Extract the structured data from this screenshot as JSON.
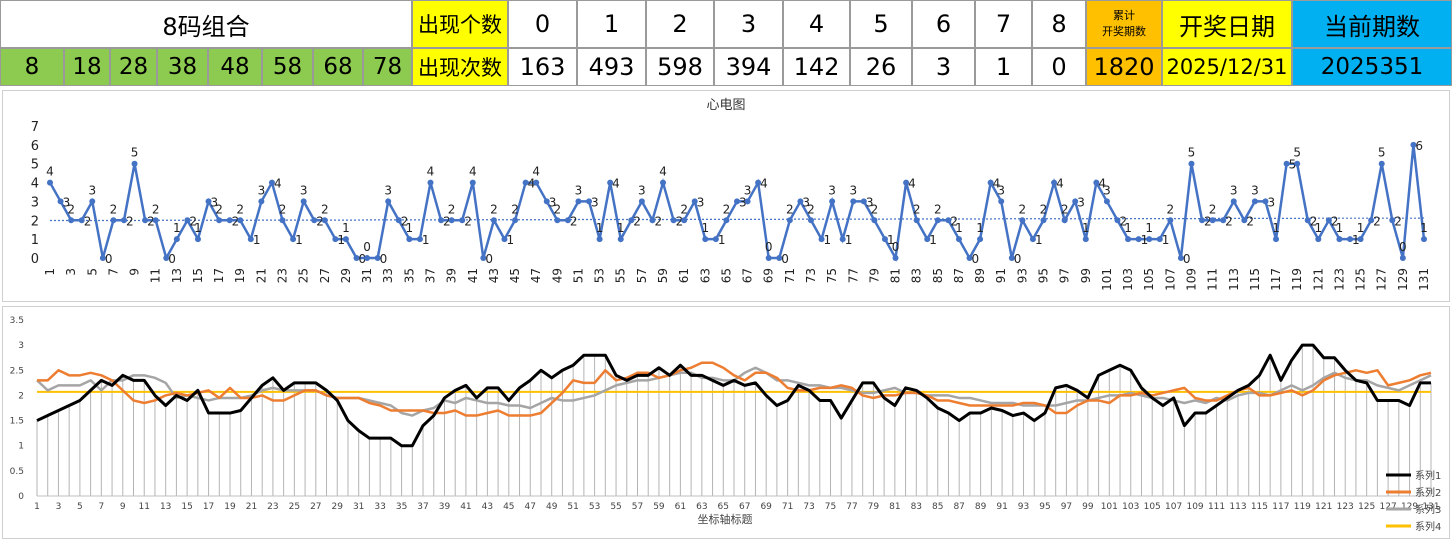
{
  "header": {
    "combo_title": "8码组合",
    "combo_numbers": [
      "8",
      "18",
      "28",
      "38",
      "48",
      "58",
      "68",
      "78"
    ],
    "count_label": "出现个数",
    "times_label": "出现次数",
    "count_values": [
      "0",
      "1",
      "2",
      "3",
      "4",
      "5",
      "6",
      "7",
      "8"
    ],
    "times_values": [
      "163",
      "493",
      "598",
      "394",
      "142",
      "26",
      "3",
      "1",
      "0"
    ],
    "cumulative_label_1": "累计",
    "cumulative_label_2": "开奖期数",
    "cumulative_value": "1820",
    "date_label": "开奖日期",
    "date_value": "2025/12/31",
    "period_label": "当前期数",
    "period_value": "2025351",
    "colors": {
      "green": "#8ccb4f",
      "yellow": "#ffff00",
      "orange": "#ffc000",
      "blue": "#00b0f0"
    }
  },
  "chart_data": [
    {
      "type": "line",
      "title": "心电图",
      "x": [
        1,
        2,
        3,
        4,
        5,
        6,
        7,
        8,
        9,
        10,
        11,
        12,
        13,
        14,
        15,
        16,
        17,
        18,
        19,
        20,
        21,
        22,
        23,
        24,
        25,
        26,
        27,
        28,
        29,
        30,
        31,
        32,
        33,
        34,
        35,
        36,
        37,
        38,
        39,
        40,
        41,
        42,
        43,
        44,
        45,
        46,
        47,
        48,
        49,
        50,
        51,
        52,
        53,
        54,
        55,
        56,
        57,
        58,
        59,
        60,
        61,
        62,
        63,
        64,
        65,
        66,
        67,
        68,
        69,
        70,
        71,
        72,
        73,
        74,
        75,
        76,
        77,
        78,
        79,
        80,
        81,
        82,
        83,
        84,
        85,
        86,
        87,
        88,
        89,
        90,
        91,
        92,
        93,
        94,
        95,
        96,
        97,
        98,
        99,
        100,
        101,
        102,
        103,
        104,
        105,
        106,
        107,
        108,
        109,
        110,
        111,
        112,
        113,
        114,
        115,
        116,
        117,
        118,
        119,
        120,
        121,
        122,
        123,
        124,
        125,
        126,
        127,
        128,
        129,
        130,
        131
      ],
      "series": [
        {
          "values": [
            4,
            3,
            2,
            2,
            3,
            0,
            2,
            2,
            5,
            2,
            2,
            0,
            1,
            2,
            1,
            3,
            2,
            2,
            2,
            1,
            3,
            4,
            2,
            1,
            3,
            2,
            2,
            1,
            1,
            0,
            0,
            0,
            3,
            2,
            1,
            1,
            4,
            2,
            2,
            2,
            4,
            0,
            2,
            1,
            2,
            4,
            4,
            3,
            2,
            2,
            3,
            3,
            1,
            4,
            1,
            2,
            3,
            2,
            4,
            2,
            2,
            3,
            1,
            1,
            2,
            3,
            3,
            4,
            0,
            0,
            2,
            3,
            2,
            1,
            3,
            1,
            3,
            3,
            2,
            1,
            0,
            4,
            2,
            1,
            2,
            2,
            1,
            0,
            1,
            4,
            3,
            0,
            2,
            1,
            2,
            4,
            2,
            3,
            1,
            4,
            3,
            2,
            1,
            1,
            1,
            1,
            2,
            0,
            5,
            2,
            2,
            2,
            3,
            2,
            3,
            3,
            1,
            5,
            5,
            2,
            1,
            2,
            1,
            1,
            1,
            2,
            5,
            2,
            0,
            6,
            1
          ],
          "color": "#4472c4"
        },
        {
          "values": [
            1.99,
            1.99,
            1.99,
            1.99,
            1.99,
            1.99,
            1.99,
            1.99,
            1.99,
            1.99,
            2.0,
            2.0,
            2.0,
            2.0,
            2.0,
            2.0,
            2.0,
            2.0,
            2.0,
            2.0,
            2.01,
            2.01,
            2.01,
            2.01,
            2.01,
            2.01,
            2.01,
            2.01,
            2.01,
            2.01,
            2.02,
            2.02,
            2.02,
            2.02,
            2.02,
            2.02,
            2.02,
            2.02,
            2.02,
            2.02,
            2.03,
            2.03,
            2.03,
            2.03,
            2.03,
            2.03,
            2.03,
            2.03,
            2.03,
            2.03,
            2.04,
            2.04,
            2.04,
            2.04,
            2.04,
            2.04,
            2.04,
            2.04,
            2.04,
            2.04,
            2.05,
            2.05,
            2.05,
            2.05,
            2.05,
            2.05,
            2.05,
            2.05,
            2.05,
            2.05,
            2.06,
            2.06,
            2.06,
            2.06,
            2.06,
            2.06,
            2.06,
            2.06,
            2.06,
            2.06,
            2.07,
            2.07,
            2.07,
            2.07,
            2.07,
            2.07,
            2.07,
            2.07,
            2.07,
            2.07,
            2.08,
            2.08,
            2.08,
            2.08,
            2.08,
            2.08,
            2.08,
            2.08,
            2.08,
            2.08,
            2.09,
            2.09,
            2.09,
            2.09,
            2.09,
            2.09,
            2.09,
            2.09,
            2.09,
            2.09,
            2.1,
            2.1,
            2.1,
            2.1,
            2.1,
            2.1,
            2.1,
            2.1,
            2.1,
            2.1,
            2.11,
            2.11,
            2.11,
            2.11,
            2.11,
            2.11,
            2.11,
            2.11,
            2.11,
            2.11,
            2.12
          ],
          "color": "#4472c4",
          "dotted": true
        }
      ],
      "y_ticks": [
        0,
        1,
        2,
        3,
        4,
        5,
        6,
        7
      ],
      "ylim": [
        0,
        7
      ]
    },
    {
      "type": "line",
      "xlabel": "坐标轴标题",
      "ylim": [
        0,
        3.5
      ],
      "y_ticks": [
        "0",
        "0.5",
        "1",
        "1.5",
        "2",
        "2.5",
        "3",
        "3.5"
      ],
      "x": [
        1,
        2,
        3,
        4,
        5,
        6,
        7,
        8,
        9,
        10,
        11,
        12,
        13,
        14,
        15,
        16,
        17,
        18,
        19,
        20,
        21,
        22,
        23,
        24,
        25,
        26,
        27,
        28,
        29,
        30,
        31,
        32,
        33,
        34,
        35,
        36,
        37,
        38,
        39,
        40,
        41,
        42,
        43,
        44,
        45,
        46,
        47,
        48,
        49,
        50,
        51,
        52,
        53,
        54,
        55,
        56,
        57,
        58,
        59,
        60,
        61,
        62,
        63,
        64,
        65,
        66,
        67,
        68,
        69,
        70,
        71,
        72,
        73,
        74,
        75,
        76,
        77,
        78,
        79,
        80,
        81,
        82,
        83,
        84,
        85,
        86,
        87,
        88,
        89,
        90,
        91,
        92,
        93,
        94,
        95,
        96,
        97,
        98,
        99,
        100,
        101,
        102,
        103,
        104,
        105,
        106,
        107,
        108,
        109,
        110,
        111,
        112,
        113,
        114,
        115,
        116,
        117,
        118,
        119,
        120,
        121,
        122,
        123,
        124,
        125,
        126,
        127,
        128,
        129,
        130,
        131
      ],
      "legend_position": "bottom-right",
      "series": [
        {
          "name": "系列1",
          "color": "#000000",
          "values": [
            1.5,
            1.6,
            1.7,
            1.8,
            1.9,
            2.1,
            2.3,
            2.2,
            2.4,
            2.3,
            2.3,
            2.0,
            1.8,
            2.0,
            1.9,
            2.1,
            1.65,
            1.65,
            1.65,
            1.7,
            1.95,
            2.2,
            2.35,
            2.1,
            2.25,
            2.25,
            2.25,
            2.1,
            1.9,
            1.5,
            1.3,
            1.15,
            1.15,
            1.15,
            1.0,
            1.0,
            1.4,
            1.6,
            1.95,
            2.1,
            2.2,
            1.95,
            2.15,
            2.15,
            1.9,
            2.15,
            2.3,
            2.5,
            2.35,
            2.5,
            2.6,
            2.8,
            2.8,
            2.8,
            2.4,
            2.3,
            2.4,
            2.4,
            2.55,
            2.4,
            2.6,
            2.4,
            2.4,
            2.3,
            2.2,
            2.3,
            2.2,
            2.25,
            2.0,
            1.8,
            1.9,
            2.2,
            2.1,
            1.9,
            1.9,
            1.55,
            1.9,
            2.25,
            2.25,
            1.95,
            1.8,
            2.15,
            2.1,
            1.95,
            1.75,
            1.65,
            1.5,
            1.65,
            1.65,
            1.75,
            1.7,
            1.6,
            1.65,
            1.5,
            1.65,
            2.15,
            2.2,
            2.1,
            1.95,
            2.4,
            2.5,
            2.6,
            2.5,
            2.15,
            1.95,
            1.8,
            1.95,
            1.4,
            1.65,
            1.65,
            1.8,
            1.95,
            2.1,
            2.2,
            2.4,
            2.8,
            2.3,
            2.7,
            3.0,
            3.0,
            2.75,
            2.75,
            2.5,
            2.3,
            2.25,
            1.9,
            1.9,
            1.9,
            1.8,
            2.25,
            2.25
          ]
        },
        {
          "name": "系列2",
          "color": "#ed7d31",
          "values": [
            2.3,
            2.3,
            2.5,
            2.4,
            2.4,
            2.45,
            2.4,
            2.3,
            2.1,
            1.9,
            1.85,
            1.9,
            2.0,
            2.05,
            2.0,
            2.05,
            2.1,
            1.95,
            2.15,
            1.95,
            1.95,
            2.0,
            1.9,
            1.9,
            2.0,
            2.1,
            2.1,
            2.0,
            1.95,
            1.95,
            1.95,
            1.85,
            1.8,
            1.7,
            1.7,
            1.7,
            1.7,
            1.65,
            1.65,
            1.7,
            1.6,
            1.6,
            1.65,
            1.7,
            1.6,
            1.6,
            1.6,
            1.65,
            1.85,
            2.05,
            2.3,
            2.25,
            2.25,
            2.5,
            2.3,
            2.35,
            2.45,
            2.45,
            2.35,
            2.4,
            2.5,
            2.55,
            2.65,
            2.65,
            2.55,
            2.4,
            2.3,
            2.45,
            2.45,
            2.35,
            2.15,
            2.1,
            2.1,
            2.15,
            2.15,
            2.2,
            2.15,
            2.0,
            1.95,
            2.0,
            2.0,
            2.05,
            2.05,
            2.0,
            1.9,
            1.9,
            1.85,
            1.8,
            1.8,
            1.8,
            1.8,
            1.8,
            1.85,
            1.85,
            1.8,
            1.65,
            1.65,
            1.8,
            1.9,
            1.9,
            1.85,
            2.0,
            2.0,
            2.05,
            2.0,
            2.05,
            2.1,
            2.15,
            1.95,
            1.9,
            1.9,
            2.0,
            2.1,
            2.15,
            2.0,
            2.0,
            2.05,
            2.1,
            2.0,
            2.1,
            2.3,
            2.4,
            2.45,
            2.5,
            2.45,
            2.5,
            2.2,
            2.25,
            2.3,
            2.4,
            2.45
          ]
        },
        {
          "name": "系列3",
          "color": "#a5a5a5",
          "values": [
            2.3,
            2.1,
            2.2,
            2.2,
            2.2,
            2.3,
            2.1,
            2.3,
            2.3,
            2.4,
            2.4,
            2.35,
            2.25,
            1.95,
            2.0,
            1.95,
            1.9,
            1.95,
            1.95,
            1.95,
            2.0,
            2.1,
            2.15,
            2.1,
            2.1,
            2.1,
            2.1,
            2.0,
            1.95,
            1.95,
            1.95,
            1.9,
            1.85,
            1.8,
            1.65,
            1.6,
            1.7,
            1.75,
            1.9,
            1.85,
            1.95,
            1.9,
            1.85,
            1.85,
            1.8,
            1.8,
            1.75,
            1.85,
            1.95,
            1.9,
            1.9,
            1.95,
            2.0,
            2.1,
            2.2,
            2.25,
            2.3,
            2.3,
            2.35,
            2.4,
            2.45,
            2.45,
            2.35,
            2.35,
            2.3,
            2.3,
            2.45,
            2.55,
            2.45,
            2.3,
            2.3,
            2.25,
            2.2,
            2.2,
            2.15,
            2.15,
            2.1,
            2.05,
            2.05,
            2.1,
            2.15,
            2.05,
            2.05,
            2.0,
            2.0,
            2.0,
            1.95,
            1.95,
            1.9,
            1.85,
            1.85,
            1.85,
            1.8,
            1.8,
            1.8,
            1.8,
            1.85,
            1.9,
            1.9,
            1.95,
            2.0,
            2.0,
            2.05,
            2.0,
            1.95,
            1.95,
            1.9,
            1.85,
            1.9,
            1.85,
            1.95,
            1.9,
            2.0,
            2.05,
            2.05,
            2.0,
            2.1,
            2.2,
            2.1,
            2.2,
            2.35,
            2.45,
            2.35,
            2.3,
            2.3,
            2.2,
            2.15,
            2.1,
            2.2,
            2.3,
            2.4
          ]
        },
        {
          "name": "系列4",
          "color": "#ffc000",
          "values": [
            2.07,
            2.07,
            2.07,
            2.07,
            2.07,
            2.07,
            2.07,
            2.07,
            2.07,
            2.07,
            2.07,
            2.07,
            2.07,
            2.07,
            2.07,
            2.07,
            2.07,
            2.07,
            2.07,
            2.07,
            2.07,
            2.07,
            2.07,
            2.07,
            2.07,
            2.07,
            2.07,
            2.07,
            2.07,
            2.07,
            2.07,
            2.07,
            2.07,
            2.07,
            2.07,
            2.07,
            2.07,
            2.07,
            2.07,
            2.07,
            2.07,
            2.07,
            2.07,
            2.07,
            2.07,
            2.07,
            2.07,
            2.07,
            2.07,
            2.07,
            2.07,
            2.07,
            2.07,
            2.07,
            2.07,
            2.07,
            2.07,
            2.07,
            2.07,
            2.07,
            2.07,
            2.07,
            2.07,
            2.07,
            2.07,
            2.07,
            2.07,
            2.07,
            2.07,
            2.07,
            2.07,
            2.07,
            2.07,
            2.07,
            2.07,
            2.07,
            2.07,
            2.07,
            2.07,
            2.07,
            2.07,
            2.07,
            2.07,
            2.07,
            2.07,
            2.07,
            2.07,
            2.07,
            2.07,
            2.07,
            2.07,
            2.07,
            2.07,
            2.07,
            2.07,
            2.07,
            2.07,
            2.07,
            2.07,
            2.07,
            2.07,
            2.07,
            2.07,
            2.07,
            2.07,
            2.07,
            2.07,
            2.07,
            2.07,
            2.07,
            2.07,
            2.07,
            2.07,
            2.07,
            2.07,
            2.07,
            2.07,
            2.07,
            2.07,
            2.07,
            2.07,
            2.07,
            2.07,
            2.07,
            2.07,
            2.07,
            2.07,
            2.07,
            2.07,
            2.07,
            2.07
          ]
        }
      ]
    }
  ]
}
